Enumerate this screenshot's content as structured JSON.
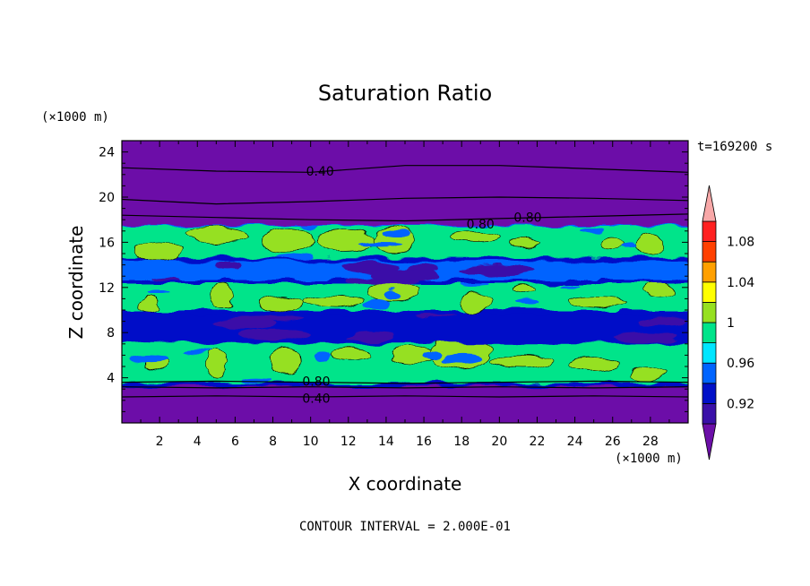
{
  "chart_data": {
    "type": "heatmap",
    "title": "Saturation Ratio",
    "xlabel": "X coordinate",
    "ylabel": "Z coordinate",
    "x_unit": "(×1000 m)",
    "y_unit": "(×1000 m)",
    "time_label": "t=169200 s",
    "contour_note": "CONTOUR INTERVAL = 2.000E-01",
    "xlim": [
      0,
      30
    ],
    "ylim": [
      0,
      25
    ],
    "x_ticks": [
      2,
      4,
      6,
      8,
      10,
      12,
      14,
      16,
      18,
      20,
      22,
      24,
      26,
      28
    ],
    "y_ticks": [
      4,
      8,
      12,
      16,
      20,
      24
    ],
    "colorbar": {
      "levels": [
        0.9,
        0.92,
        0.94,
        0.96,
        0.98,
        1.0,
        1.02,
        1.04,
        1.06,
        1.08,
        1.1
      ],
      "labels": [
        "0.92",
        "0.96",
        "1",
        "1.04",
        "1.08"
      ],
      "label_values": [
        0.92,
        0.96,
        1.0,
        1.04,
        1.08
      ],
      "colors": [
        "#6c0fa8",
        "#3a10a8",
        "#0010c8",
        "#0064ff",
        "#00e6ff",
        "#00e48a",
        "#96e020",
        "#ffff00",
        "#ffa000",
        "#ff4000",
        "#ff2020",
        "#f8a8a8"
      ],
      "extend": "both"
    },
    "bands": [
      {
        "z": [
          0,
          3.4
        ],
        "value": 0.88
      },
      {
        "z": [
          3.4,
          7.2
        ],
        "value": 0.99,
        "patches": 1.01
      },
      {
        "z": [
          7.2,
          9.8
        ],
        "value": 0.93
      },
      {
        "z": [
          9.8,
          12.5
        ],
        "value": 0.99,
        "patches": 1.01
      },
      {
        "z": [
          12.5,
          14.5
        ],
        "value": 0.94
      },
      {
        "z": [
          14.5,
          17.5
        ],
        "value": 0.98,
        "patches": 1.01
      },
      {
        "z": [
          17.5,
          25
        ],
        "value": 0.88
      }
    ],
    "contour_labels": [
      {
        "text": "0.40",
        "x": 10.5,
        "z": 22.3
      },
      {
        "text": "0.80",
        "x": 19.0,
        "z": 17.6
      },
      {
        "text": "0.80",
        "x": 21.5,
        "z": 18.2
      },
      {
        "text": "0.80",
        "x": 10.3,
        "z": 3.7
      },
      {
        "text": "0.40",
        "x": 10.3,
        "z": 2.2
      }
    ],
    "contour_lines": [
      {
        "z": 22.5,
        "x": [
          0,
          5,
          10,
          15,
          20,
          25,
          30
        ],
        "zz": [
          22.6,
          22.3,
          22.2,
          22.8,
          22.8,
          22.5,
          22.2
        ]
      },
      {
        "z": 19.8,
        "x": [
          0,
          5,
          10,
          15,
          20,
          25,
          30
        ],
        "zz": [
          19.8,
          19.4,
          19.6,
          19.9,
          20.0,
          19.9,
          19.7
        ]
      },
      {
        "z": 18.4,
        "x": [
          0,
          5,
          10,
          15,
          20,
          25,
          30
        ],
        "zz": [
          18.4,
          18.2,
          18.0,
          17.9,
          18.1,
          18.3,
          18.5
        ]
      },
      {
        "z": 3.6,
        "x": [
          0,
          5,
          10,
          15,
          20,
          25,
          30
        ],
        "zz": [
          3.6,
          3.7,
          3.6,
          3.5,
          3.6,
          3.7,
          3.6
        ]
      },
      {
        "z": 2.3,
        "x": [
          0,
          5,
          10,
          15,
          20,
          25,
          30
        ],
        "zz": [
          2.3,
          2.4,
          2.3,
          2.4,
          2.3,
          2.4,
          2.3
        ]
      },
      {
        "z": 3.2,
        "x": [
          0,
          5,
          10,
          15,
          20,
          25,
          30
        ],
        "zz": [
          3.2,
          3.1,
          3.2,
          3.1,
          3.2,
          3.1,
          3.2
        ]
      }
    ],
    "legend": "colorbar-right",
    "grid": false
  }
}
